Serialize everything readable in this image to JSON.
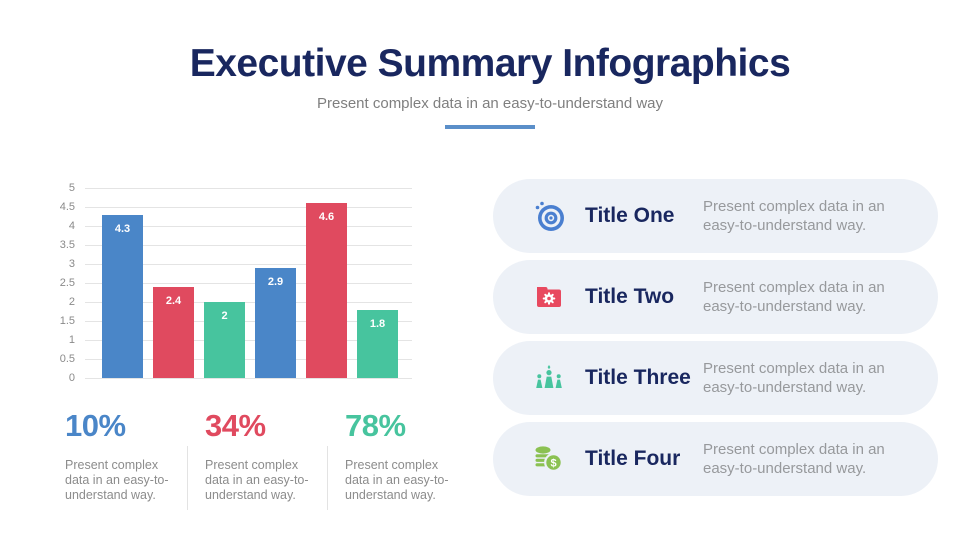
{
  "header": {
    "title": "Executive Summary Infographics",
    "subtitle": "Present complex data in an easy-to-understand way"
  },
  "colors": {
    "title_navy": "#19275f",
    "accent_line_blue": "#5b8fc9",
    "bar_blue": "#4a86c8",
    "bar_red": "#e04a5f",
    "bar_green": "#47c49e",
    "coin_lime": "#8bc152",
    "card_background": "#edf1f7"
  },
  "chart_data": {
    "type": "bar",
    "title": "",
    "xlabel": "",
    "ylabel": "",
    "categories": [
      "",
      "",
      "",
      "",
      "",
      ""
    ],
    "values": [
      4.3,
      2.4,
      2,
      2.9,
      4.6,
      1.8
    ],
    "value_labels": [
      "4.3",
      "2.4",
      "2",
      "2.9",
      "4.6",
      "1.8"
    ],
    "bar_colors": [
      "#4a86c8",
      "#e04a5f",
      "#47c49e",
      "#4a86c8",
      "#e04a5f",
      "#47c49e"
    ],
    "ylim": [
      0,
      5
    ],
    "yticks": [
      "5",
      "4.5",
      "4",
      "3.5",
      "3",
      "2.5",
      "2",
      "1.5",
      "1",
      "0.5",
      "0"
    ],
    "grid": true,
    "legend": false
  },
  "stats": [
    {
      "value": "10%",
      "color": "#4a86c8",
      "description": "Present complex data in an easy-to-understand way."
    },
    {
      "value": "34%",
      "color": "#e04a5f",
      "description": "Present complex data in an easy-to-understand way."
    },
    {
      "value": "78%",
      "color": "#47c49e",
      "description": "Present complex data in an easy-to-understand way."
    }
  ],
  "cards": [
    {
      "title": "Title One",
      "description": "Present complex data in an easy-to-understand way.",
      "icon": "target-icon",
      "icon_color": "#4a7fd0"
    },
    {
      "title": "Title Two",
      "description": "Present complex data in an easy-to-understand way.",
      "icon": "folder-gear-icon",
      "icon_color": "#e8495f"
    },
    {
      "title": "Title Three",
      "description": "Present complex data in an easy-to-understand way.",
      "icon": "team-icon",
      "icon_color": "#47c49e"
    },
    {
      "title": "Title Four",
      "description": "Present complex data in an easy-to-understand way.",
      "icon": "coins-icon",
      "icon_color": "#8bc152"
    }
  ]
}
